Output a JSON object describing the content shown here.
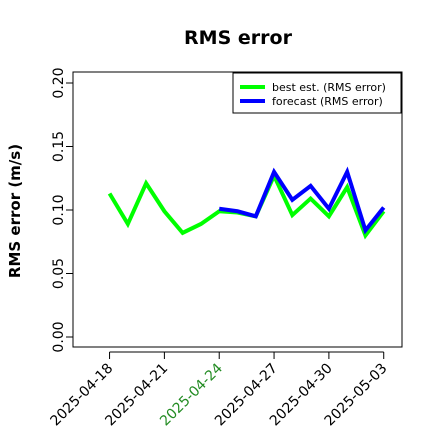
{
  "chart_data": {
    "type": "line",
    "title": "RMS error",
    "xlabel": "",
    "ylabel": "RMS error (m/s)",
    "ylim": [
      0,
      0.21
    ],
    "yticks": [
      0.0,
      0.05,
      0.1,
      0.15,
      0.2
    ],
    "ytick_labels": [
      "0.00",
      "0.05",
      "0.10",
      "0.15",
      "0.20"
    ],
    "xlim": [
      "2025-04-16",
      "2025-05-04"
    ],
    "xticks": [
      "2025-04-18",
      "2025-04-21",
      "2025-04-24",
      "2025-04-27",
      "2025-04-30",
      "2025-05-03"
    ],
    "xtick_colors": [
      "#000000",
      "#000000",
      "#228B22",
      "#000000",
      "#000000",
      "#000000"
    ],
    "grid": false,
    "legend_position": "top-right",
    "series": [
      {
        "name": "best est. (RMS error)",
        "color": "#00FF00",
        "x": [
          "2025-04-18",
          "2025-04-19",
          "2025-04-20",
          "2025-04-21",
          "2025-04-22",
          "2025-04-23",
          "2025-04-24",
          "2025-04-25",
          "2025-04-26",
          "2025-04-27",
          "2025-04-28",
          "2025-04-29",
          "2025-04-30",
          "2025-05-01",
          "2025-05-02",
          "2025-05-03"
        ],
        "values": [
          0.113,
          0.089,
          0.121,
          0.099,
          0.082,
          0.089,
          0.099,
          0.098,
          0.095,
          0.127,
          0.096,
          0.109,
          0.095,
          0.118,
          0.08,
          0.099
        ]
      },
      {
        "name": "forecast (RMS error)",
        "color": "#0000FF",
        "x": [
          "2025-04-24",
          "2025-04-25",
          "2025-04-26",
          "2025-04-27",
          "2025-04-28",
          "2025-04-29",
          "2025-04-30",
          "2025-05-01",
          "2025-05-02",
          "2025-05-03"
        ],
        "values": [
          0.101,
          0.099,
          0.095,
          0.13,
          0.108,
          0.119,
          0.101,
          0.13,
          0.084,
          0.102
        ]
      }
    ]
  }
}
